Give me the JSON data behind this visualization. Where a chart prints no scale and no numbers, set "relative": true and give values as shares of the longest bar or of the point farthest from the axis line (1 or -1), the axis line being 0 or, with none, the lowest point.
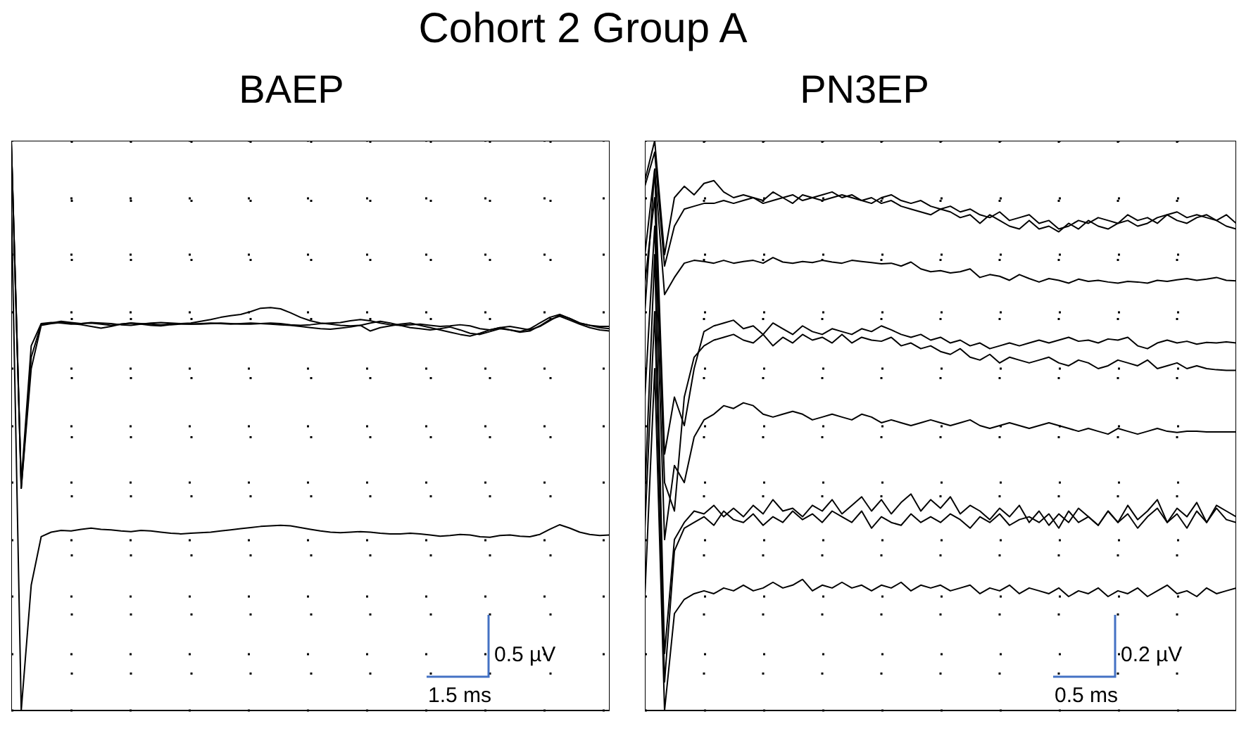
{
  "chart_data": [
    {
      "type": "line",
      "title": "Cohort 2 Group A",
      "subtitle": "BAEP",
      "relative": true,
      "grid": true,
      "marker": "none",
      "line_style": "solid",
      "annotations": [
        "0.5 µV",
        "1.5 ms"
      ],
      "categories": [
        null,
        null,
        null,
        null,
        null,
        null,
        null,
        null,
        null,
        null,
        null,
        null,
        null,
        null,
        null,
        null,
        null,
        null,
        null,
        null,
        null,
        null,
        null,
        null,
        null,
        null,
        null,
        null,
        null,
        null,
        null,
        null,
        null,
        null,
        null,
        null,
        null,
        null,
        null,
        null,
        null,
        null,
        null,
        null,
        null,
        null,
        null,
        null,
        null,
        null,
        null,
        null,
        null,
        null,
        null,
        null,
        null,
        null,
        null,
        null,
        null
      ],
      "series": [
        {
          "color": "#000000",
          "values": [
            1.0,
            0.39,
            0.62,
            0.678,
            0.68,
            0.683,
            0.681,
            0.679,
            0.68,
            0.678,
            0.676,
            0.678,
            0.68,
            0.679,
            0.678,
            0.677,
            0.678,
            0.679,
            0.68,
            0.683,
            0.686,
            0.69,
            0.693,
            0.695,
            0.7,
            0.706,
            0.707,
            0.705,
            0.698,
            0.69,
            0.684,
            0.68,
            0.678,
            0.676,
            0.675,
            0.676,
            0.68,
            0.683,
            0.68,
            0.676,
            0.672,
            0.67,
            0.668,
            0.67,
            0.673,
            0.668,
            0.662,
            0.66,
            0.665,
            0.67,
            0.668,
            0.665,
            0.67,
            0.68,
            0.69,
            0.695,
            0.688,
            0.68,
            0.676,
            0.674,
            0.674
          ]
        },
        {
          "color": "#000000",
          "values": [
            1.0,
            0.39,
            0.6,
            0.676,
            0.679,
            0.681,
            0.679,
            0.677,
            0.674,
            0.671,
            0.674,
            0.678,
            0.68,
            0.678,
            0.676,
            0.675,
            0.677,
            0.678,
            0.678,
            0.679,
            0.68,
            0.679,
            0.678,
            0.679,
            0.68,
            0.679,
            0.678,
            0.677,
            0.676,
            0.674,
            0.672,
            0.67,
            0.669,
            0.671,
            0.673,
            0.676,
            0.666,
            0.672,
            0.675,
            0.678,
            0.68,
            0.676,
            0.672,
            0.668,
            0.664,
            0.66,
            0.657,
            0.662,
            0.668,
            0.672,
            0.668,
            0.664,
            0.666,
            0.675,
            0.686,
            0.692,
            0.685,
            0.678,
            0.672,
            0.668,
            0.666
          ]
        },
        {
          "color": "#000000",
          "values": [
            1.0,
            0.4,
            0.64,
            0.679,
            0.681,
            0.68,
            0.678,
            0.679,
            0.681,
            0.68,
            0.679,
            0.677,
            0.676,
            0.678,
            0.68,
            0.681,
            0.68,
            0.679,
            0.678,
            0.678,
            0.679,
            0.68,
            0.679,
            0.678,
            0.678,
            0.679,
            0.68,
            0.679,
            0.677,
            0.676,
            0.677,
            0.679,
            0.68,
            0.681,
            0.684,
            0.686,
            0.684,
            0.68,
            0.677,
            0.676,
            0.677,
            0.678,
            0.676,
            0.674,
            0.675,
            0.677,
            0.675,
            0.67,
            0.668,
            0.672,
            0.674,
            0.671,
            0.668,
            0.674,
            0.684,
            0.694,
            0.688,
            0.68,
            0.676,
            0.672,
            0.67
          ]
        },
        {
          "color": "#000000",
          "values": [
            0.9,
            0.0,
            0.22,
            0.305,
            0.313,
            0.316,
            0.315,
            0.318,
            0.32,
            0.318,
            0.317,
            0.315,
            0.314,
            0.316,
            0.315,
            0.313,
            0.311,
            0.31,
            0.311,
            0.312,
            0.313,
            0.315,
            0.317,
            0.319,
            0.321,
            0.323,
            0.324,
            0.325,
            0.324,
            0.321,
            0.318,
            0.315,
            0.313,
            0.312,
            0.313,
            0.314,
            0.313,
            0.311,
            0.31,
            0.31,
            0.311,
            0.31,
            0.308,
            0.306,
            0.307,
            0.309,
            0.308,
            0.305,
            0.304,
            0.307,
            0.308,
            0.306,
            0.305,
            0.309,
            0.318,
            0.326,
            0.32,
            0.313,
            0.309,
            0.307,
            0.308
          ]
        }
      ]
    },
    {
      "type": "line",
      "subtitle": "PN3EP",
      "relative": true,
      "grid": true,
      "marker": "none",
      "line_style": "solid",
      "annotations": [
        "0.2 µV",
        "0.5 ms"
      ],
      "categories": [
        null,
        null,
        null,
        null,
        null,
        null,
        null,
        null,
        null,
        null,
        null,
        null,
        null,
        null,
        null,
        null,
        null,
        null,
        null,
        null,
        null,
        null,
        null,
        null,
        null,
        null,
        null,
        null,
        null,
        null,
        null,
        null,
        null,
        null,
        null,
        null,
        null,
        null,
        null,
        null,
        null,
        null,
        null,
        null,
        null,
        null,
        null,
        null,
        null,
        null,
        null,
        null,
        null,
        null,
        null,
        null,
        null,
        null,
        null,
        null,
        null
      ],
      "series": [
        {
          "color": "#000000",
          "values": [
            0.93,
            1.0,
            0.8,
            0.9,
            0.92,
            0.905,
            0.925,
            0.93,
            0.91,
            0.9,
            0.905,
            0.9,
            0.895,
            0.91,
            0.9,
            0.89,
            0.905,
            0.9,
            0.895,
            0.9,
            0.905,
            0.9,
            0.895,
            0.89,
            0.9,
            0.905,
            0.895,
            0.89,
            0.895,
            0.885,
            0.88,
            0.885,
            0.875,
            0.88,
            0.87,
            0.865,
            0.875,
            0.86,
            0.865,
            0.87,
            0.855,
            0.86,
            0.845,
            0.85,
            0.86,
            0.855,
            0.865,
            0.86,
            0.855,
            0.87,
            0.86,
            0.865,
            0.855,
            0.87,
            0.875,
            0.865,
            0.87,
            0.865,
            0.86,
            0.87,
            0.855
          ]
        },
        {
          "color": "#000000",
          "values": [
            0.92,
            0.98,
            0.78,
            0.85,
            0.88,
            0.885,
            0.89,
            0.89,
            0.895,
            0.89,
            0.895,
            0.9,
            0.89,
            0.895,
            0.9,
            0.905,
            0.895,
            0.9,
            0.905,
            0.91,
            0.9,
            0.905,
            0.895,
            0.9,
            0.89,
            0.895,
            0.885,
            0.88,
            0.875,
            0.87,
            0.88,
            0.875,
            0.865,
            0.87,
            0.855,
            0.87,
            0.86,
            0.85,
            0.845,
            0.86,
            0.845,
            0.85,
            0.84,
            0.855,
            0.845,
            0.86,
            0.85,
            0.845,
            0.855,
            0.86,
            0.85,
            0.855,
            0.865,
            0.87,
            0.86,
            0.855,
            0.865,
            0.87,
            0.86,
            0.85,
            0.845
          ]
        },
        {
          "color": "#000000",
          "values": [
            0.8,
            0.95,
            0.73,
            0.76,
            0.785,
            0.79,
            0.788,
            0.785,
            0.79,
            0.785,
            0.788,
            0.79,
            0.785,
            0.795,
            0.787,
            0.785,
            0.788,
            0.786,
            0.79,
            0.787,
            0.785,
            0.79,
            0.788,
            0.786,
            0.784,
            0.785,
            0.78,
            0.787,
            0.775,
            0.77,
            0.772,
            0.768,
            0.77,
            0.775,
            0.76,
            0.765,
            0.762,
            0.755,
            0.765,
            0.758,
            0.752,
            0.758,
            0.755,
            0.75,
            0.757,
            0.753,
            0.755,
            0.752,
            0.75,
            0.753,
            0.752,
            0.75,
            0.755,
            0.753,
            0.756,
            0.758,
            0.755,
            0.757,
            0.76,
            0.755,
            0.754
          ]
        },
        {
          "color": "#000000",
          "values": [
            0.7,
            0.95,
            0.45,
            0.55,
            0.5,
            0.6,
            0.665,
            0.675,
            0.68,
            0.685,
            0.67,
            0.675,
            0.66,
            0.68,
            0.67,
            0.66,
            0.675,
            0.665,
            0.66,
            0.67,
            0.665,
            0.66,
            0.67,
            0.665,
            0.675,
            0.668,
            0.66,
            0.655,
            0.66,
            0.65,
            0.655,
            0.645,
            0.65,
            0.64,
            0.645,
            0.635,
            0.64,
            0.645,
            0.64,
            0.645,
            0.65,
            0.645,
            0.65,
            0.655,
            0.648,
            0.65,
            0.645,
            0.652,
            0.65,
            0.655,
            0.64,
            0.635,
            0.645,
            0.65,
            0.645,
            0.648,
            0.643,
            0.646,
            0.645,
            0.647,
            0.645
          ]
        },
        {
          "color": "#000000",
          "values": [
            0.75,
            0.9,
            0.4,
            0.35,
            0.55,
            0.62,
            0.64,
            0.65,
            0.655,
            0.66,
            0.65,
            0.645,
            0.66,
            0.64,
            0.655,
            0.645,
            0.66,
            0.65,
            0.655,
            0.645,
            0.66,
            0.645,
            0.655,
            0.65,
            0.648,
            0.655,
            0.64,
            0.645,
            0.635,
            0.64,
            0.63,
            0.625,
            0.635,
            0.62,
            0.615,
            0.625,
            0.61,
            0.62,
            0.615,
            0.61,
            0.615,
            0.62,
            0.61,
            0.605,
            0.615,
            0.61,
            0.6,
            0.605,
            0.615,
            0.61,
            0.605,
            0.615,
            0.6,
            0.605,
            0.61,
            0.6,
            0.605,
            0.6,
            0.598,
            0.597,
            0.597
          ]
        },
        {
          "color": "#000000",
          "values": [
            0.55,
            0.85,
            0.3,
            0.43,
            0.4,
            0.48,
            0.51,
            0.52,
            0.535,
            0.53,
            0.54,
            0.535,
            0.52,
            0.515,
            0.52,
            0.525,
            0.52,
            0.51,
            0.515,
            0.52,
            0.515,
            0.51,
            0.52,
            0.515,
            0.505,
            0.51,
            0.505,
            0.5,
            0.505,
            0.51,
            0.505,
            0.5,
            0.505,
            0.51,
            0.5,
            0.495,
            0.5,
            0.505,
            0.5,
            0.495,
            0.5,
            0.505,
            0.5,
            0.495,
            0.49,
            0.495,
            0.49,
            0.485,
            0.495,
            0.49,
            0.485,
            0.49,
            0.495,
            0.49,
            0.488,
            0.49,
            0.49,
            0.489,
            0.489,
            0.489,
            0.489
          ]
        },
        {
          "color": "#000000",
          "values": [
            0.38,
            0.8,
            0.1,
            0.3,
            0.33,
            0.35,
            0.345,
            0.36,
            0.34,
            0.355,
            0.34,
            0.36,
            0.345,
            0.37,
            0.35,
            0.355,
            0.34,
            0.36,
            0.35,
            0.37,
            0.345,
            0.36,
            0.375,
            0.35,
            0.37,
            0.345,
            0.365,
            0.38,
            0.35,
            0.37,
            0.355,
            0.375,
            0.345,
            0.36,
            0.35,
            0.335,
            0.355,
            0.34,
            0.36,
            0.33,
            0.35,
            0.325,
            0.345,
            0.33,
            0.355,
            0.34,
            0.325,
            0.35,
            0.33,
            0.36,
            0.335,
            0.35,
            0.37,
            0.33,
            0.355,
            0.34,
            0.365,
            0.33,
            0.36,
            0.35,
            0.34
          ]
        },
        {
          "color": "#000000",
          "values": [
            0.32,
            0.7,
            0.05,
            0.28,
            0.32,
            0.33,
            0.34,
            0.325,
            0.35,
            0.335,
            0.33,
            0.345,
            0.325,
            0.34,
            0.33,
            0.35,
            0.335,
            0.345,
            0.33,
            0.35,
            0.34,
            0.33,
            0.35,
            0.32,
            0.34,
            0.33,
            0.325,
            0.345,
            0.33,
            0.34,
            0.33,
            0.345,
            0.335,
            0.32,
            0.34,
            0.33,
            0.345,
            0.325,
            0.335,
            0.34,
            0.33,
            0.345,
            0.32,
            0.35,
            0.33,
            0.34,
            0.325,
            0.35,
            0.33,
            0.345,
            0.32,
            0.34,
            0.355,
            0.33,
            0.345,
            0.32,
            0.35,
            0.33,
            0.355,
            0.335,
            0.33
          ]
        },
        {
          "color": "#000000",
          "values": [
            0.2,
            0.6,
            0.0,
            0.17,
            0.195,
            0.205,
            0.21,
            0.205,
            0.215,
            0.21,
            0.22,
            0.21,
            0.215,
            0.225,
            0.215,
            0.22,
            0.23,
            0.21,
            0.22,
            0.215,
            0.225,
            0.215,
            0.22,
            0.21,
            0.22,
            0.215,
            0.225,
            0.21,
            0.22,
            0.215,
            0.22,
            0.21,
            0.215,
            0.22,
            0.205,
            0.215,
            0.21,
            0.22,
            0.205,
            0.215,
            0.21,
            0.205,
            0.215,
            0.2,
            0.21,
            0.205,
            0.215,
            0.2,
            0.21,
            0.205,
            0.215,
            0.2,
            0.21,
            0.22,
            0.205,
            0.21,
            0.2,
            0.215,
            0.205,
            0.21,
            0.215
          ]
        }
      ]
    }
  ]
}
